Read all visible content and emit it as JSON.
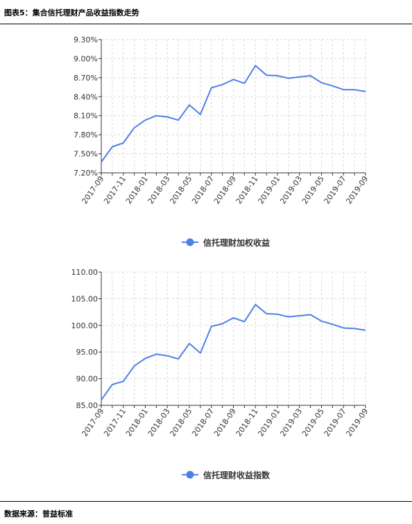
{
  "figure_title": "图表5：集合信托理财产品收益指数走势",
  "source": "数据来源：普益标准",
  "colors": {
    "line": "#4f7fe6",
    "grid": "#d9d9d9",
    "axis": "#333333"
  },
  "chart_data": [
    {
      "type": "line",
      "title": "",
      "x": [
        "2017-09",
        "2017-10",
        "2017-11",
        "2017-12",
        "2018-01",
        "2018-02",
        "2018-03",
        "2018-04",
        "2018-05",
        "2018-06",
        "2018-07",
        "2018-08",
        "2018-09",
        "2018-10",
        "2018-11",
        "2018-12",
        "2019-01",
        "2019-02",
        "2019-03",
        "2019-04",
        "2019-05",
        "2019-06",
        "2019-07",
        "2019-08",
        "2019-09"
      ],
      "x_tick_labels": [
        "2017-09",
        "2017-11",
        "2018-01",
        "2018-03",
        "2018-05",
        "2018-07",
        "2018-09",
        "2018-11",
        "2019-01",
        "2019-03",
        "2019-05",
        "2019-07",
        "2019-09"
      ],
      "y_tick_labels": [
        "7.20%",
        "7.50%",
        "7.80%",
        "8.10%",
        "8.40%",
        "8.70%",
        "9.00%",
        "9.30%"
      ],
      "ylim": [
        7.2,
        9.3
      ],
      "y_unit": "%",
      "legend_position": "bottom-center",
      "grid": true,
      "series": [
        {
          "name": "信托理财加权收益",
          "values": [
            7.37,
            7.61,
            7.67,
            7.91,
            8.03,
            8.1,
            8.08,
            8.03,
            8.27,
            8.12,
            8.54,
            8.59,
            8.67,
            8.61,
            8.89,
            8.74,
            8.73,
            8.69,
            8.71,
            8.73,
            8.62,
            8.57,
            8.51,
            8.51,
            8.48
          ]
        }
      ]
    },
    {
      "type": "line",
      "title": "",
      "x": [
        "2017-09",
        "2017-10",
        "2017-11",
        "2017-12",
        "2018-01",
        "2018-02",
        "2018-03",
        "2018-04",
        "2018-05",
        "2018-06",
        "2018-07",
        "2018-08",
        "2018-09",
        "2018-10",
        "2018-11",
        "2018-12",
        "2019-01",
        "2019-02",
        "2019-03",
        "2019-04",
        "2019-05",
        "2019-06",
        "2019-07",
        "2019-08",
        "2019-09"
      ],
      "x_tick_labels": [
        "2017-09",
        "2017-11",
        "2018-01",
        "2018-03",
        "2018-05",
        "2018-07",
        "2018-09",
        "2018-11",
        "2019-01",
        "2019-03",
        "2019-05",
        "2019-07",
        "2019-09"
      ],
      "y_tick_labels": [
        "85.00",
        "90.00",
        "95.00",
        "100.00",
        "105.00",
        "110.00"
      ],
      "ylim": [
        85,
        110
      ],
      "legend_position": "bottom-center",
      "grid": true,
      "series": [
        {
          "name": "信托理财收益指数",
          "values": [
            86.0,
            88.9,
            89.5,
            92.4,
            93.8,
            94.6,
            94.3,
            93.7,
            96.6,
            94.8,
            99.8,
            100.3,
            101.4,
            100.7,
            103.9,
            102.2,
            102.1,
            101.6,
            101.8,
            102.0,
            100.8,
            100.2,
            99.5,
            99.4,
            99.1
          ]
        }
      ]
    }
  ]
}
